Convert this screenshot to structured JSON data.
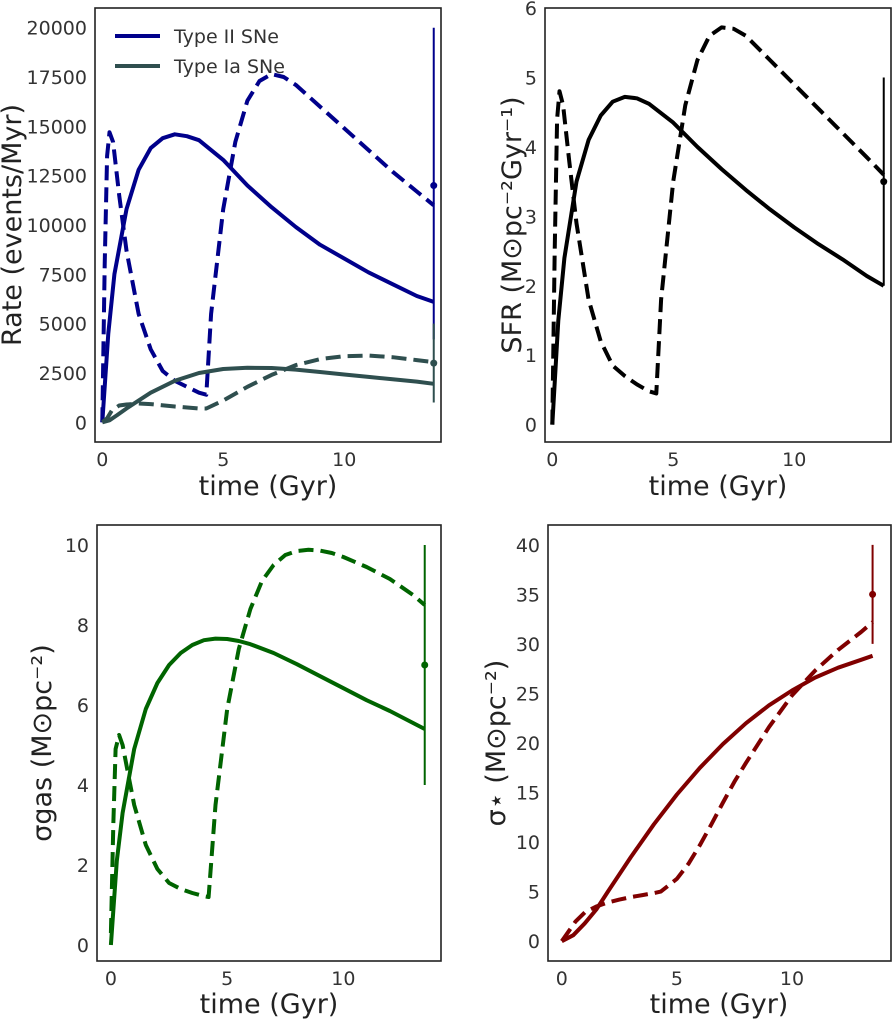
{
  "chart_data": [
    {
      "type": "line",
      "xlabel": "time (Gyr)",
      "ylabel": "Rate (events/Myr)",
      "xlim": [
        -0.3,
        14.0
      ],
      "ylim": [
        -1000,
        21000
      ],
      "xticks": [
        0,
        5,
        10
      ],
      "xtick_labels": [
        "0",
        "5",
        "10"
      ],
      "yticks": [
        0,
        2500,
        5000,
        7500,
        10000,
        12500,
        15000,
        17500,
        20000
      ],
      "ytick_labels": [
        "0",
        "2500",
        "5000",
        "7500",
        "10000",
        "12500",
        "15000",
        "17500",
        "20000"
      ],
      "legend": "top-left",
      "series": [
        {
          "name": "Type II SNe",
          "style": "solid",
          "color": "#00008b",
          "x": [
            0,
            0.25,
            0.5,
            1,
            1.5,
            2,
            2.5,
            3,
            3.5,
            4,
            5,
            6,
            7,
            8,
            9,
            10,
            11,
            12,
            13,
            13.7
          ],
          "y": [
            0,
            4500,
            7500,
            10800,
            12800,
            13900,
            14400,
            14600,
            14500,
            14300,
            13300,
            12000,
            10900,
            9900,
            9000,
            8300,
            7600,
            7000,
            6400,
            6100
          ]
        },
        {
          "name": "",
          "style": "dashed",
          "color": "#00008b",
          "x": [
            0,
            0.1,
            0.2,
            0.3,
            0.45,
            0.7,
            1,
            1.5,
            2,
            2.5,
            3,
            3.5,
            4,
            4.3,
            4.5,
            5,
            5.5,
            6,
            6.5,
            7,
            7.5,
            8,
            9,
            10,
            11,
            12,
            13,
            13.7
          ],
          "y": [
            0,
            8000,
            13500,
            14700,
            14200,
            11500,
            8700,
            5500,
            3700,
            2600,
            2100,
            1800,
            1500,
            1400,
            5500,
            10800,
            14200,
            16300,
            17300,
            17650,
            17500,
            17100,
            16000,
            14900,
            13800,
            12700,
            11700,
            11000
          ]
        },
        {
          "name": "Type Ia SNe",
          "style": "solid",
          "color": "#2f4f4f",
          "x": [
            0,
            0.3,
            0.6,
            1,
            1.5,
            2,
            3,
            4,
            5,
            6,
            7,
            8,
            9,
            10,
            11,
            12,
            13,
            13.7
          ],
          "y": [
            0,
            100,
            350,
            700,
            1100,
            1500,
            2100,
            2500,
            2700,
            2760,
            2750,
            2670,
            2550,
            2420,
            2300,
            2180,
            2060,
            1950
          ]
        },
        {
          "name": "",
          "style": "dashed",
          "color": "#2f4f4f",
          "x": [
            0,
            0.2,
            0.4,
            0.7,
            1,
            1.5,
            2,
            3,
            4,
            4.3,
            5,
            6,
            7,
            8,
            9,
            10,
            11,
            12,
            13,
            13.7
          ],
          "y": [
            0,
            200,
            600,
            850,
            900,
            950,
            920,
            800,
            700,
            700,
            1100,
            1800,
            2400,
            2900,
            3200,
            3350,
            3380,
            3300,
            3150,
            3050
          ]
        }
      ],
      "markers": [
        {
          "x": 13.7,
          "y": 12000,
          "yerr_low": 4200,
          "yerr_high": 20000,
          "color": "#00008b"
        },
        {
          "x": 13.7,
          "y": 3000,
          "yerr_low": 1000,
          "yerr_high": 5000,
          "color": "#2f4f4f"
        }
      ]
    },
    {
      "type": "line",
      "xlabel": "time (Gyr)",
      "ylabel": "SFR (M⊙pc⁻²Gyr⁻¹)",
      "xlim": [
        -0.3,
        14.0
      ],
      "ylim": [
        -0.25,
        6.0
      ],
      "xticks": [
        0,
        5,
        10
      ],
      "xtick_labels": [
        "0",
        "5",
        "10"
      ],
      "yticks": [
        0,
        1,
        2,
        3,
        4,
        5,
        6
      ],
      "ytick_labels": [
        "0",
        "1",
        "2",
        "3",
        "4",
        "5",
        "6"
      ],
      "series": [
        {
          "name": "",
          "style": "solid",
          "color": "#000000",
          "x": [
            0,
            0.25,
            0.5,
            1,
            1.5,
            2,
            2.5,
            3,
            3.5,
            4,
            5,
            6,
            7,
            8,
            9,
            10,
            11,
            12,
            13,
            13.7
          ],
          "y": [
            0,
            1.5,
            2.4,
            3.5,
            4.1,
            4.45,
            4.65,
            4.72,
            4.7,
            4.62,
            4.35,
            4.0,
            3.68,
            3.38,
            3.1,
            2.84,
            2.6,
            2.38,
            2.14,
            2.0
          ]
        },
        {
          "name": "",
          "style": "dashed",
          "color": "#000000",
          "x": [
            0,
            0.1,
            0.2,
            0.3,
            0.45,
            0.7,
            1,
            1.5,
            2,
            2.5,
            3,
            3.5,
            4,
            4.3,
            4.5,
            5,
            5.5,
            6,
            6.5,
            7,
            7.5,
            8,
            9,
            10,
            11,
            12,
            13,
            13.7
          ],
          "y": [
            0,
            2.5,
            4.4,
            4.8,
            4.6,
            3.8,
            2.9,
            1.8,
            1.2,
            0.85,
            0.7,
            0.58,
            0.48,
            0.45,
            1.8,
            3.5,
            4.6,
            5.25,
            5.6,
            5.72,
            5.7,
            5.6,
            5.25,
            4.9,
            4.55,
            4.2,
            3.85,
            3.6
          ]
        }
      ],
      "markers": [
        {
          "x": 13.7,
          "y": 3.5,
          "yerr_low": 2.0,
          "yerr_high": 5.0,
          "color": "#000000"
        }
      ]
    },
    {
      "type": "line",
      "xlabel": "time (Gyr)",
      "ylabel": "σgas (M⊙pc⁻²)",
      "xlim": [
        -0.6,
        14.2
      ],
      "ylim": [
        -0.4,
        10.5
      ],
      "xticks": [
        0,
        5,
        10
      ],
      "xtick_labels": [
        "0",
        "5",
        "10"
      ],
      "yticks": [
        0,
        2,
        4,
        6,
        8,
        10
      ],
      "ytick_labels": [
        "0",
        "2",
        "4",
        "6",
        "8",
        "10"
      ],
      "series": [
        {
          "name": "",
          "style": "solid",
          "color": "#006400",
          "x": [
            0,
            0.25,
            0.5,
            1,
            1.5,
            2,
            2.5,
            3,
            3.5,
            4,
            4.5,
            5,
            5.5,
            6,
            7,
            8,
            9,
            10,
            11,
            12,
            13,
            13.5
          ],
          "y": [
            0,
            2.1,
            3.3,
            4.9,
            5.9,
            6.55,
            7.0,
            7.3,
            7.5,
            7.62,
            7.66,
            7.65,
            7.6,
            7.52,
            7.3,
            7.02,
            6.72,
            6.42,
            6.12,
            5.85,
            5.55,
            5.4
          ]
        },
        {
          "name": "",
          "style": "dashed",
          "color": "#006400",
          "x": [
            0,
            0.1,
            0.2,
            0.35,
            0.5,
            0.7,
            1,
            1.5,
            2,
            2.5,
            3,
            3.5,
            4,
            4.2,
            4.5,
            5,
            5.5,
            6,
            6.5,
            7,
            7.5,
            8,
            8.5,
            9,
            9.5,
            10,
            11,
            12,
            13,
            13.5
          ],
          "y": [
            0.3,
            3.0,
            4.9,
            5.25,
            5.0,
            4.4,
            3.5,
            2.5,
            1.9,
            1.55,
            1.4,
            1.3,
            1.22,
            1.2,
            3.5,
            5.9,
            7.4,
            8.4,
            9.1,
            9.5,
            9.75,
            9.85,
            9.88,
            9.86,
            9.8,
            9.7,
            9.45,
            9.15,
            8.75,
            8.5
          ]
        }
      ],
      "markers": [
        {
          "x": 13.5,
          "y": 7.0,
          "yerr_low": 4.0,
          "yerr_high": 10.0,
          "color": "#006400"
        }
      ]
    },
    {
      "type": "line",
      "xlabel": "time (Gyr)",
      "ylabel": "σ⋆ (M⊙pc⁻²)",
      "xlim": [
        -0.6,
        14.3
      ],
      "ylim": [
        -2,
        42
      ],
      "xticks": [
        0,
        5,
        10
      ],
      "xtick_labels": [
        "0",
        "5",
        "10"
      ],
      "yticks": [
        0,
        5,
        10,
        15,
        20,
        25,
        30,
        35,
        40
      ],
      "ytick_labels": [
        "0",
        "5",
        "10",
        "15",
        "20",
        "25",
        "30",
        "35",
        "40"
      ],
      "series": [
        {
          "name": "",
          "style": "solid",
          "color": "#800000",
          "x": [
            0,
            0.5,
            1,
            1.5,
            2,
            3,
            4,
            5,
            6,
            7,
            8,
            9,
            10,
            11,
            12,
            13,
            13.5
          ],
          "y": [
            0,
            0.6,
            1.8,
            3.2,
            5.0,
            8.5,
            11.8,
            14.8,
            17.5,
            19.9,
            22.0,
            23.8,
            25.3,
            26.6,
            27.6,
            28.4,
            28.8
          ]
        },
        {
          "name": "",
          "style": "dashed",
          "color": "#800000",
          "x": [
            0,
            0.3,
            0.6,
            1,
            1.5,
            2,
            2.5,
            3,
            3.5,
            4,
            4.3,
            5,
            5.5,
            6,
            6.5,
            7,
            7.5,
            8,
            9,
            10,
            11,
            12,
            13,
            13.5
          ],
          "y": [
            0,
            1.0,
            2.0,
            2.9,
            3.5,
            3.9,
            4.2,
            4.45,
            4.65,
            4.85,
            5.0,
            6.3,
            7.8,
            9.7,
            11.8,
            14.0,
            16.1,
            18.0,
            21.6,
            24.8,
            27.3,
            29.4,
            31.2,
            32.2
          ]
        }
      ],
      "markers": [
        {
          "x": 13.5,
          "y": 35.0,
          "yerr_low": 30.0,
          "yerr_high": 40.0,
          "color": "#800000"
        }
      ]
    }
  ]
}
